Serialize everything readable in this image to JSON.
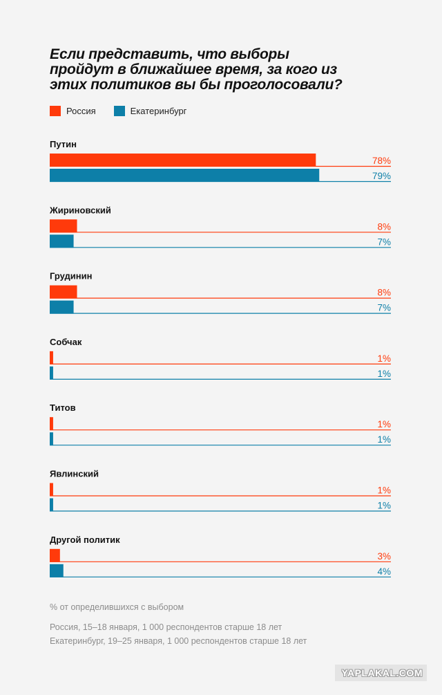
{
  "chart_data": {
    "type": "bar",
    "title": "Если представить, что выборы пройдут в ближайшее время, за кого из этих политиков вы бы проголосовали?",
    "categories": [
      "Путин",
      "Жириновский",
      "Грудинин",
      "Собчак",
      "Титов",
      "Явлинский",
      "Другой политик"
    ],
    "series": [
      {
        "name": "Россия",
        "color": "#ff3a0b",
        "values": [
          78,
          8,
          8,
          1,
          1,
          1,
          3
        ],
        "labels": [
          "78%",
          "8%",
          "8%",
          "1%",
          "1%",
          "1%",
          "3%"
        ]
      },
      {
        "name": "Екатеринбург",
        "color": "#0d7fa8",
        "values": [
          79,
          7,
          7,
          1,
          1,
          1,
          4
        ],
        "labels": [
          "79%",
          "7%",
          "7%",
          "1%",
          "1%",
          "1%",
          "4%"
        ]
      }
    ],
    "xlim": [
      0,
      100
    ],
    "orientation": "horizontal",
    "legend_position": "top-left",
    "grid": false
  },
  "footer": {
    "note": "% от определившихся с выбором",
    "source_russia": "Россия, 15–18 января, 1 000 респондентов старше 18 лет",
    "source_ekb": "Екатеринбург, 19–25 января, 1 000 респондентов старше 18 лет"
  },
  "watermark": "YAPLAKAL.COM"
}
